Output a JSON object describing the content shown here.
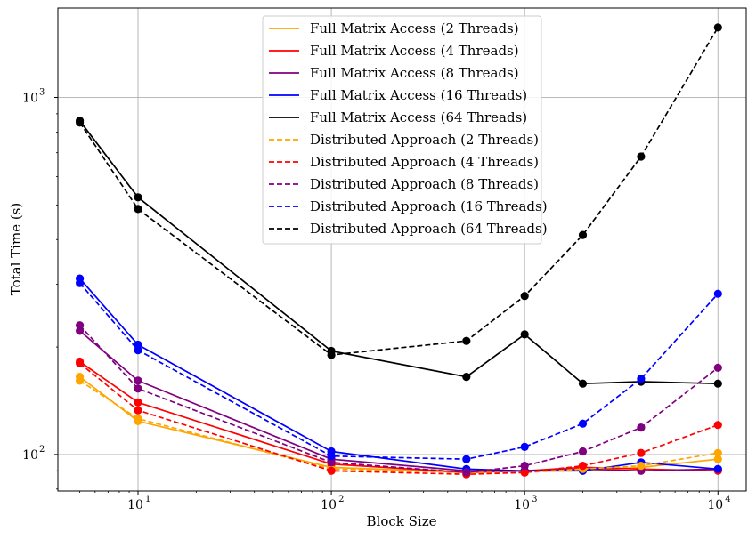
{
  "chart_data": {
    "type": "line",
    "xlabel": "Block Size",
    "ylabel": "Total Time (s)",
    "xscale": "log",
    "yscale": "log",
    "xlim": [
      3.85,
      14000
    ],
    "ylim": [
      79,
      1780
    ],
    "grid": true,
    "legend_position": "top-center",
    "x_ticks": [
      {
        "value": 10,
        "label": "10",
        "exp": "1"
      },
      {
        "value": 100,
        "label": "10",
        "exp": "2"
      },
      {
        "value": 1000,
        "label": "10",
        "exp": "3"
      },
      {
        "value": 10000,
        "label": "10",
        "exp": "4"
      }
    ],
    "y_ticks": [
      {
        "value": 100,
        "label": "10",
        "exp": "2"
      },
      {
        "value": 1000,
        "label": "10",
        "exp": "3"
      }
    ],
    "series": [
      {
        "name": "Full Matrix Access (2 Threads)",
        "color": "#ffa500",
        "dash": "solid",
        "x": [
          5,
          10,
          100,
          500,
          1000,
          2000,
          4000,
          10000
        ],
        "y": [
          165,
          124,
          92,
          89,
          90,
          90,
          92,
          97
        ]
      },
      {
        "name": "Full Matrix Access (4 Threads)",
        "color": "#ff0000",
        "dash": "solid",
        "x": [
          5,
          10,
          100,
          500,
          1000,
          2000,
          4000,
          10000
        ],
        "y": [
          182,
          140,
          94,
          89,
          90,
          92,
          91,
          90
        ]
      },
      {
        "name": "Full Matrix Access (8 Threads)",
        "color": "#800080",
        "dash": "solid",
        "x": [
          5,
          10,
          100,
          500,
          1000,
          2000,
          4000,
          10000
        ],
        "y": [
          222,
          161,
          97,
          90,
          90,
          91,
          90,
          91
        ]
      },
      {
        "name": "Full Matrix Access (16 Threads)",
        "color": "#0000ff",
        "dash": "solid",
        "x": [
          5,
          10,
          100,
          500,
          1000,
          2000,
          4000,
          10000
        ],
        "y": [
          311,
          203,
          102,
          91,
          90,
          90,
          95,
          91
        ]
      },
      {
        "name": "Full Matrix Access (64 Threads)",
        "color": "#000000",
        "dash": "solid",
        "x": [
          5,
          10,
          100,
          500,
          1000,
          2000,
          4000,
          10000
        ],
        "y": [
          860,
          525,
          195,
          165,
          217,
          158,
          160,
          158
        ]
      },
      {
        "name": "Distributed Approach (2 Threads)",
        "color": "#ffa500",
        "dash": "dashed",
        "x": [
          5,
          10,
          100,
          500,
          1000,
          2000,
          4000,
          10000
        ],
        "y": [
          161,
          126,
          91,
          89,
          89,
          91,
          93,
          101
        ]
      },
      {
        "name": "Distributed Approach (4 Threads)",
        "color": "#ff0000",
        "dash": "dashed",
        "x": [
          5,
          10,
          100,
          500,
          1000,
          2000,
          4000,
          10000
        ],
        "y": [
          180,
          133,
          90,
          88,
          89,
          93,
          101,
          121
        ]
      },
      {
        "name": "Distributed Approach (8 Threads)",
        "color": "#800080",
        "dash": "dashed",
        "x": [
          5,
          10,
          100,
          500,
          1000,
          2000,
          4000,
          10000
        ],
        "y": [
          230,
          153,
          95,
          89,
          93,
          102,
          119,
          175
        ]
      },
      {
        "name": "Distributed Approach (16 Threads)",
        "color": "#0000ff",
        "dash": "dashed",
        "x": [
          5,
          10,
          100,
          500,
          1000,
          2000,
          4000,
          10000
        ],
        "y": [
          302,
          196,
          99,
          97,
          105,
          122,
          163,
          282
        ]
      },
      {
        "name": "Distributed Approach (64 Threads)",
        "color": "#000000",
        "dash": "dashed",
        "x": [
          5,
          10,
          100,
          500,
          1000,
          2000,
          4000,
          10000
        ],
        "y": [
          850,
          487,
          190,
          208,
          278,
          412,
          683,
          1570
        ]
      }
    ]
  }
}
